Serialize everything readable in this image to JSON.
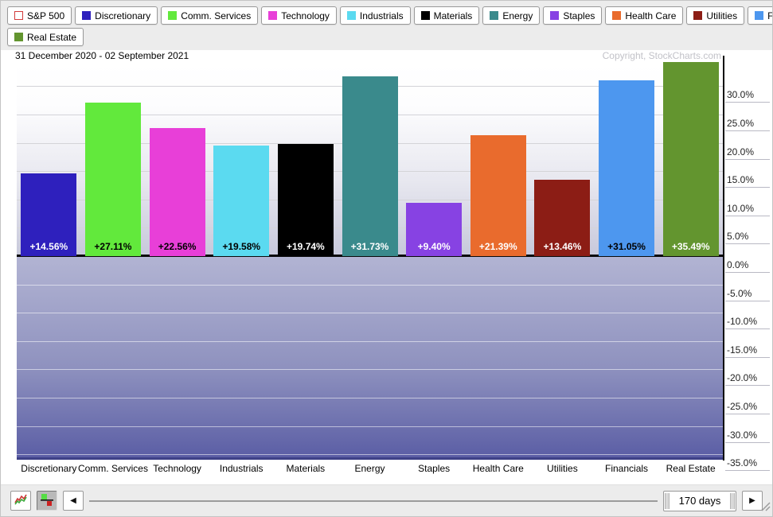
{
  "legend": {
    "items": [
      {
        "label": "S&P 500",
        "color": "#ffffff",
        "border": "#d23b3b"
      },
      {
        "label": "Discretionary",
        "color": "#2e20bd"
      },
      {
        "label": "Comm. Services",
        "color": "#62e93c"
      },
      {
        "label": "Technology",
        "color": "#e83fd8"
      },
      {
        "label": "Industrials",
        "color": "#5bdaf0"
      },
      {
        "label": "Materials",
        "color": "#000000"
      },
      {
        "label": "Energy",
        "color": "#3a8a8c"
      },
      {
        "label": "Staples",
        "color": "#8742e3"
      },
      {
        "label": "Health Care",
        "color": "#e96b2d"
      },
      {
        "label": "Utilities",
        "color": "#8c1d15"
      },
      {
        "label": "Financials",
        "color": "#4d97ef"
      },
      {
        "label": "Real Estate",
        "color": "#63952f"
      }
    ],
    "row_break_after": 11
  },
  "header": {
    "date_range": "31 December 2020 - 02 September 2021",
    "copyright": "Copyright, StockCharts.com"
  },
  "chart_data": {
    "type": "bar",
    "title": "31 December 2020 - 02 September 2021",
    "categories": [
      "Discretionary",
      "Comm. Services",
      "Technology",
      "Industrials",
      "Materials",
      "Energy",
      "Staples",
      "Health Care",
      "Utilities",
      "Financials",
      "Real Estate"
    ],
    "values": [
      14.56,
      27.11,
      22.56,
      19.58,
      19.74,
      31.73,
      9.4,
      21.39,
      13.46,
      31.05,
      35.49
    ],
    "bar_labels": [
      "+14.56%",
      "+27.11%",
      "+22.56%",
      "+19.58%",
      "+19.74%",
      "+31.73%",
      "+9.40%",
      "+21.39%",
      "+13.46%",
      "+31.05%",
      "+35.49%"
    ],
    "bar_colors": [
      "#2e20bd",
      "#62e93c",
      "#e83fd8",
      "#5bdaf0",
      "#000000",
      "#3a8a8c",
      "#8742e3",
      "#e96b2d",
      "#8c1d15",
      "#4d97ef",
      "#63952f"
    ],
    "bar_label_colors": [
      "#ffffff",
      "#000000",
      "#000000",
      "#000000",
      "#ffffff",
      "#ffffff",
      "#ffffff",
      "#ffffff",
      "#ffffff",
      "#000000",
      "#ffffff"
    ],
    "xlabel": "",
    "ylabel": "",
    "ylim": [
      -35,
      35
    ],
    "grid": true,
    "legend_position": "top",
    "yticks": [
      {
        "value": 30,
        "label": "30.0%"
      },
      {
        "value": 25,
        "label": "25.0%"
      },
      {
        "value": 20,
        "label": "20.0%"
      },
      {
        "value": 15,
        "label": "15.0%"
      },
      {
        "value": 10,
        "label": "10.0%"
      },
      {
        "value": 5,
        "label": "5.0%"
      },
      {
        "value": 0,
        "label": "0.0%"
      },
      {
        "value": -5,
        "label": "-5.0%"
      },
      {
        "value": -10,
        "label": "-10.0%"
      },
      {
        "value": -15,
        "label": "-15.0%"
      },
      {
        "value": -20,
        "label": "-20.0%"
      },
      {
        "value": -25,
        "label": "-25.0%"
      },
      {
        "value": -30,
        "label": "-30.0%"
      },
      {
        "value": -35,
        "label": "-35.0%"
      }
    ]
  },
  "toolbar": {
    "line_mode_icon": "line-chart-icon",
    "histogram_mode_icon": "histogram-icon",
    "left_arrow": "◀",
    "right_arrow": "▶",
    "range_label": "170 days"
  }
}
